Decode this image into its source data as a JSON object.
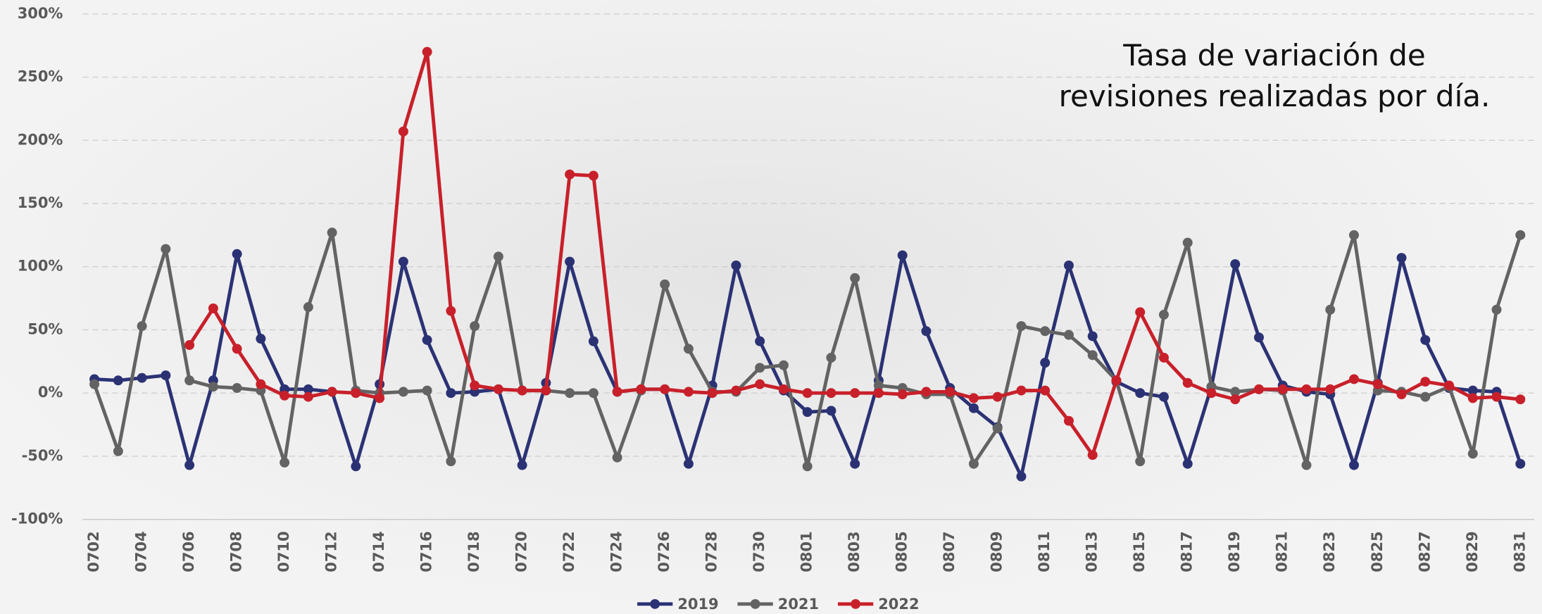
{
  "chart_data": {
    "type": "line",
    "title": "Tasa de variación de revisiones realizadas por día.",
    "categories": [
      "0702",
      null,
      "0704",
      null,
      "0706",
      null,
      "0708",
      null,
      "0710",
      null,
      "0712",
      null,
      "0714",
      null,
      "0716",
      null,
      "0718",
      null,
      "0720",
      null,
      "0722",
      null,
      "0724",
      null,
      "0726",
      null,
      "0728",
      null,
      "0730",
      null,
      "0801",
      null,
      "0803",
      null,
      "0805",
      null,
      "0807",
      null,
      "0809",
      null,
      "0811",
      null,
      "0813",
      null,
      "0815",
      null,
      "0817",
      null,
      "0819",
      null,
      "0821",
      null,
      "0823",
      null,
      "0825",
      null,
      "0827",
      null,
      "0829",
      null,
      "0831"
    ],
    "series": [
      {
        "name": "2019",
        "color": "#2b3274",
        "values": [
          11,
          10,
          12,
          14,
          -57,
          10,
          110,
          43,
          3,
          3,
          1,
          -58,
          7,
          104,
          42,
          0,
          1,
          3,
          -57,
          8,
          104,
          41,
          1,
          3,
          3,
          -56,
          6,
          101,
          41,
          2,
          -15,
          -14,
          -56,
          10,
          109,
          49,
          4,
          -12,
          -27,
          -66,
          24,
          101,
          45,
          9,
          0,
          -3,
          -56,
          5,
          102,
          44,
          6,
          1,
          -1,
          -57,
          8,
          107,
          42,
          4,
          2,
          1,
          -56
        ]
      },
      {
        "name": "2021",
        "color": "#636363",
        "values": [
          7,
          -46,
          53,
          114,
          10,
          5,
          4,
          2,
          -55,
          68,
          127,
          2,
          0,
          1,
          2,
          -54,
          53,
          108,
          2,
          2,
          0,
          0,
          -51,
          2,
          86,
          35,
          1,
          1,
          20,
          22,
          -58,
          28,
          91,
          6,
          4,
          -1,
          -1,
          -56,
          -28,
          53,
          49,
          46,
          30,
          10,
          -54,
          62,
          119,
          5,
          1,
          3,
          2,
          -57,
          66,
          125,
          2,
          1,
          -3,
          5,
          -48,
          66,
          125
        ]
      },
      {
        "name": "2022",
        "color": "#c8202a",
        "values": [
          null,
          null,
          null,
          null,
          38,
          67,
          35,
          7,
          -2,
          -3,
          1,
          0,
          -4,
          207,
          270,
          65,
          6,
          3,
          2,
          2,
          173,
          172,
          1,
          3,
          3,
          1,
          0,
          2,
          7,
          3,
          0,
          0,
          0,
          0,
          -1,
          1,
          1,
          -4,
          -3,
          2,
          2,
          -22,
          -49,
          10,
          64,
          28,
          8,
          0,
          -5,
          3,
          3,
          3,
          3,
          11,
          7,
          -1,
          9,
          6,
          -4,
          -3,
          -5
        ]
      }
    ],
    "ylim": [
      -100,
      300
    ],
    "yticks": [
      {
        "value": -100,
        "label": "-100%"
      },
      {
        "value": -50,
        "label": "-50%"
      },
      {
        "value": 0,
        "label": "0%"
      },
      {
        "value": 50,
        "label": "50%"
      },
      {
        "value": 100,
        "label": "100%"
      },
      {
        "value": 150,
        "label": "150%"
      },
      {
        "value": 200,
        "label": "200%"
      },
      {
        "value": 250,
        "label": "250%"
      },
      {
        "value": 300,
        "label": "300%"
      }
    ],
    "grid": true,
    "legend": "bottom"
  }
}
